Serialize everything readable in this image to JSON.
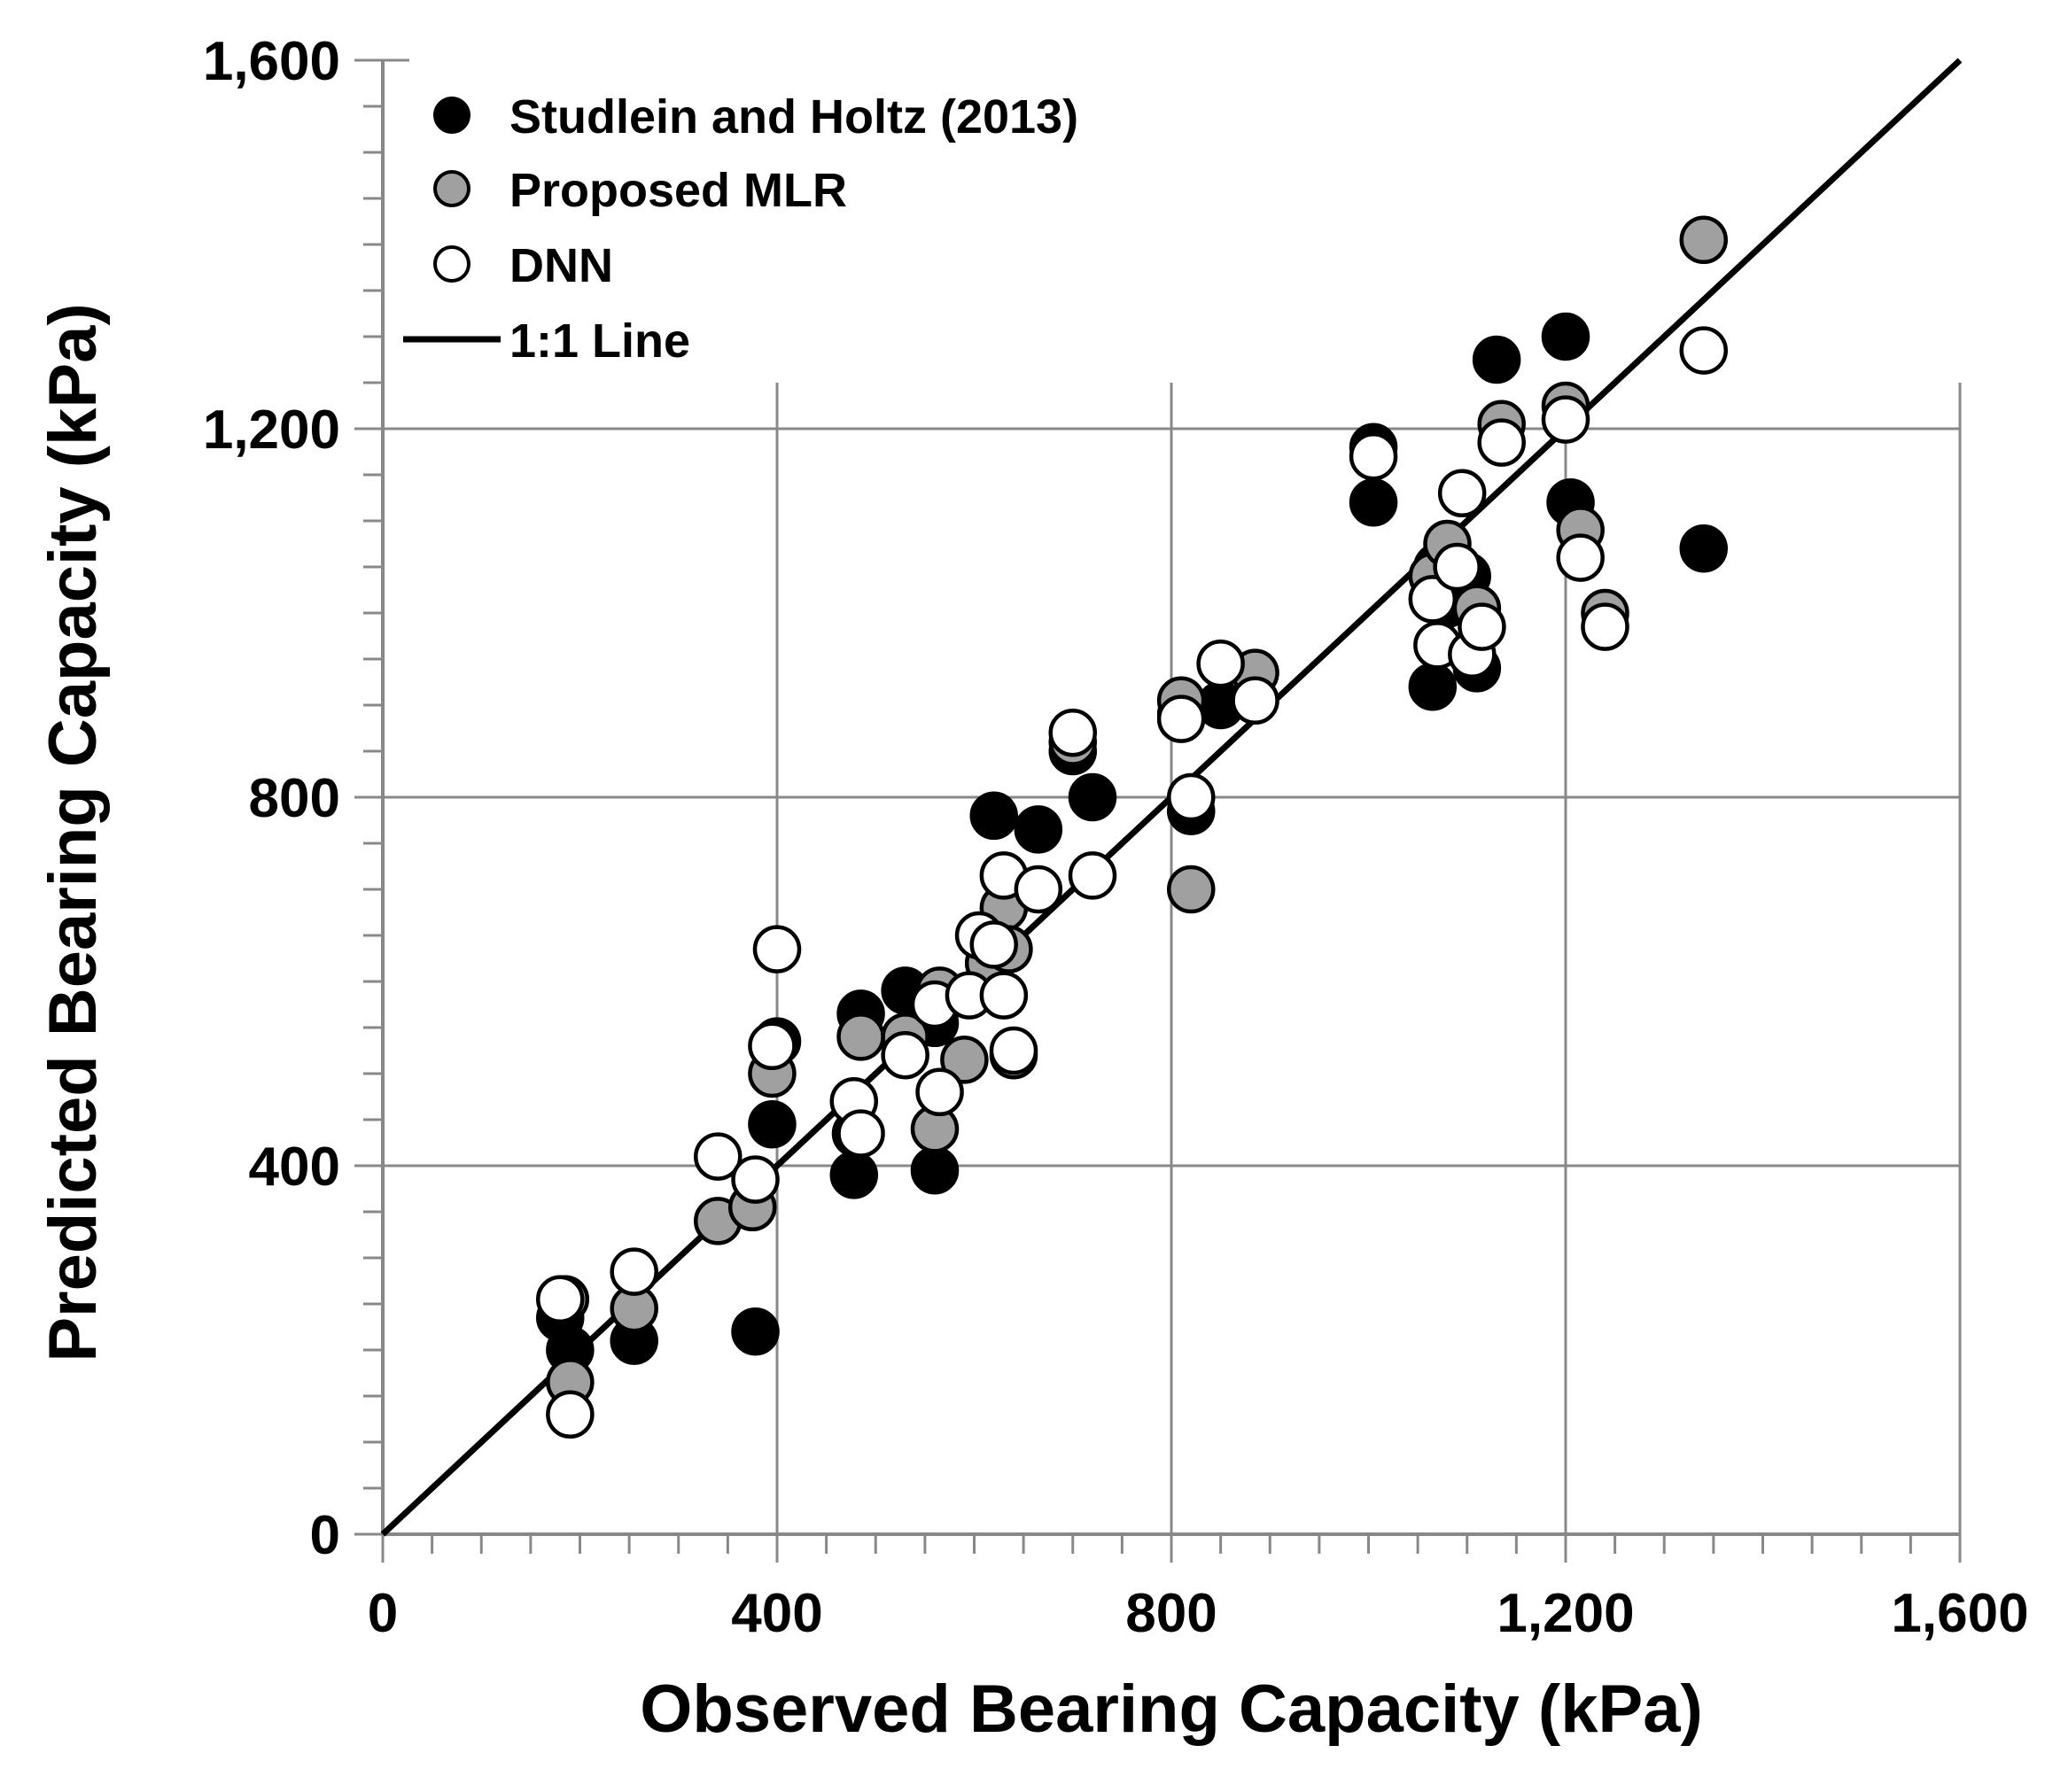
{
  "chart_data": {
    "type": "scatter",
    "xlabel": "Observed Bearing Capacity (kPa)",
    "ylabel": "Predicted Bearing Capacity (kPa)",
    "xlim": [
      0,
      1600
    ],
    "ylim": [
      0,
      1600
    ],
    "xticks": [
      0,
      400,
      800,
      1200,
      1600
    ],
    "yticks": [
      0,
      400,
      800,
      1200,
      1600
    ],
    "xtick_labels": [
      "0",
      "400",
      "800",
      "1,200",
      "1,600"
    ],
    "ytick_labels": [
      "0",
      "400",
      "800",
      "1,200",
      "1,600"
    ],
    "grid": true,
    "legend_position": "top-left",
    "colors": {
      "black": "#000000",
      "gray": "#a0a0a0",
      "white": "#ffffff",
      "grid": "#888888"
    },
    "series": [
      {
        "name": "Studlein and Holtz (2013)",
        "marker": "filled-black",
        "points": [
          [
            180,
            235
          ],
          [
            190,
            200
          ],
          [
            255,
            210
          ],
          [
            378,
            220
          ],
          [
            395,
            445
          ],
          [
            400,
            535
          ],
          [
            478,
            390
          ],
          [
            480,
            435
          ],
          [
            485,
            565
          ],
          [
            530,
            590
          ],
          [
            560,
            555
          ],
          [
            560,
            395
          ],
          [
            620,
            780
          ],
          [
            665,
            765
          ],
          [
            720,
            800
          ],
          [
            700,
            850
          ],
          [
            810,
            890
          ],
          [
            820,
            785
          ],
          [
            850,
            900
          ],
          [
            1005,
            1120
          ],
          [
            1005,
            1180
          ],
          [
            1065,
            920
          ],
          [
            1070,
            1050
          ],
          [
            1080,
            1010
          ],
          [
            1100,
            1040
          ],
          [
            1110,
            940
          ],
          [
            1200,
            1300
          ],
          [
            1205,
            1120
          ],
          [
            1130,
            1275
          ],
          [
            1340,
            1070
          ]
        ]
      },
      {
        "name": "Proposed MLR",
        "marker": "filled-gray",
        "points": [
          [
            185,
            255
          ],
          [
            190,
            165
          ],
          [
            255,
            245
          ],
          [
            340,
            340
          ],
          [
            375,
            355
          ],
          [
            395,
            500
          ],
          [
            485,
            540
          ],
          [
            530,
            540
          ],
          [
            560,
            440
          ],
          [
            565,
            590
          ],
          [
            590,
            515
          ],
          [
            615,
            620
          ],
          [
            630,
            680
          ],
          [
            635,
            635
          ],
          [
            640,
            520
          ],
          [
            700,
            860
          ],
          [
            820,
            700
          ],
          [
            810,
            905
          ],
          [
            885,
            935
          ],
          [
            1065,
            1040
          ],
          [
            1080,
            1075
          ],
          [
            1110,
            1005
          ],
          [
            1135,
            1205
          ],
          [
            1200,
            1225
          ],
          [
            1215,
            1090
          ],
          [
            1240,
            1000
          ],
          [
            1340,
            1405
          ]
        ]
      },
      {
        "name": "DNN",
        "marker": "open-white",
        "points": [
          [
            180,
            255
          ],
          [
            190,
            130
          ],
          [
            255,
            285
          ],
          [
            340,
            410
          ],
          [
            378,
            385
          ],
          [
            395,
            530
          ],
          [
            400,
            635
          ],
          [
            478,
            470
          ],
          [
            485,
            435
          ],
          [
            530,
            520
          ],
          [
            560,
            575
          ],
          [
            565,
            480
          ],
          [
            595,
            585
          ],
          [
            605,
            650
          ],
          [
            620,
            640
          ],
          [
            630,
            715
          ],
          [
            630,
            585
          ],
          [
            640,
            525
          ],
          [
            665,
            700
          ],
          [
            700,
            870
          ],
          [
            720,
            715
          ],
          [
            820,
            800
          ],
          [
            810,
            885
          ],
          [
            850,
            945
          ],
          [
            885,
            905
          ],
          [
            1005,
            1170
          ],
          [
            1065,
            1015
          ],
          [
            1070,
            965
          ],
          [
            1090,
            1050
          ],
          [
            1095,
            1130
          ],
          [
            1105,
            955
          ],
          [
            1115,
            985
          ],
          [
            1135,
            1185
          ],
          [
            1200,
            1210
          ],
          [
            1215,
            1060
          ],
          [
            1240,
            985
          ],
          [
            1340,
            1285
          ]
        ]
      },
      {
        "name": "1:1 Line",
        "marker": "line",
        "points": [
          [
            0,
            0
          ],
          [
            1600,
            1600
          ]
        ]
      }
    ]
  }
}
